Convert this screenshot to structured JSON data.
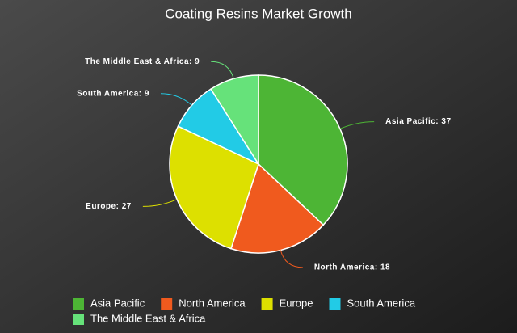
{
  "chart_data": {
    "type": "pie",
    "title": "Coating Resins Market Growth",
    "categories": [
      "Asia Pacific",
      "North America",
      "Europe",
      "South America",
      "The Middle East & Africa"
    ],
    "values": [
      37,
      18,
      27,
      9,
      9
    ],
    "value_labels": [
      "Asia Pacific: 37",
      "North America: 18",
      "Europe: 27",
      "South America: 9",
      "The Middle East & Africa: 9"
    ],
    "colors": [
      "#4db535",
      "#f05a1e",
      "#dde000",
      "#22cbe6",
      "#66e27a"
    ],
    "legend": "bottom"
  }
}
